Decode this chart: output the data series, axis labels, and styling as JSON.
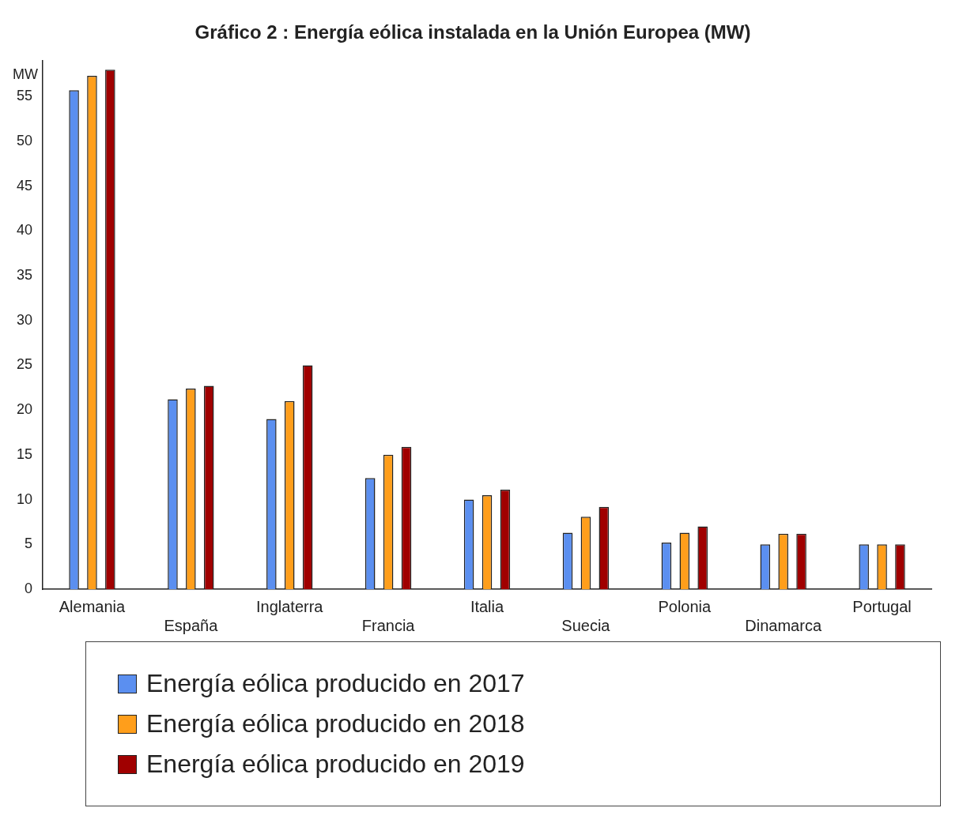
{
  "chart_data": {
    "type": "bar",
    "title": "Gráfico 2 : Energía eólica instalada en la Unión Europea (MW)",
    "ylabel": "MW",
    "categories": [
      "Alemania",
      "España",
      "Inglaterra",
      "Francia",
      "Italia",
      "Suecia",
      "Polonia",
      "Dinamarca",
      "Portugal"
    ],
    "series": [
      {
        "name": "Energía eólica producido en 2017",
        "color": "#5b8ff0",
        "values": [
          55.7,
          21.2,
          19.0,
          12.4,
          10.0,
          6.3,
          5.2,
          5.0,
          5.0
        ]
      },
      {
        "name": "Energía eólica producido en 2018",
        "color": "#ff9e1b",
        "values": [
          57.3,
          22.4,
          21.0,
          15.0,
          10.5,
          8.1,
          6.3,
          6.2,
          5.0
        ]
      },
      {
        "name": "Energía eólica producido en 2019",
        "color": "#a00000",
        "values": [
          58.0,
          22.7,
          25.0,
          15.9,
          11.1,
          9.2,
          7.0,
          6.2,
          5.0
        ]
      }
    ],
    "ylim": [
      0,
      59
    ],
    "yticks": [
      0,
      5,
      10,
      15,
      20,
      25,
      30,
      35,
      40,
      45,
      50,
      55
    ],
    "grid": false,
    "legend": "bottom"
  }
}
